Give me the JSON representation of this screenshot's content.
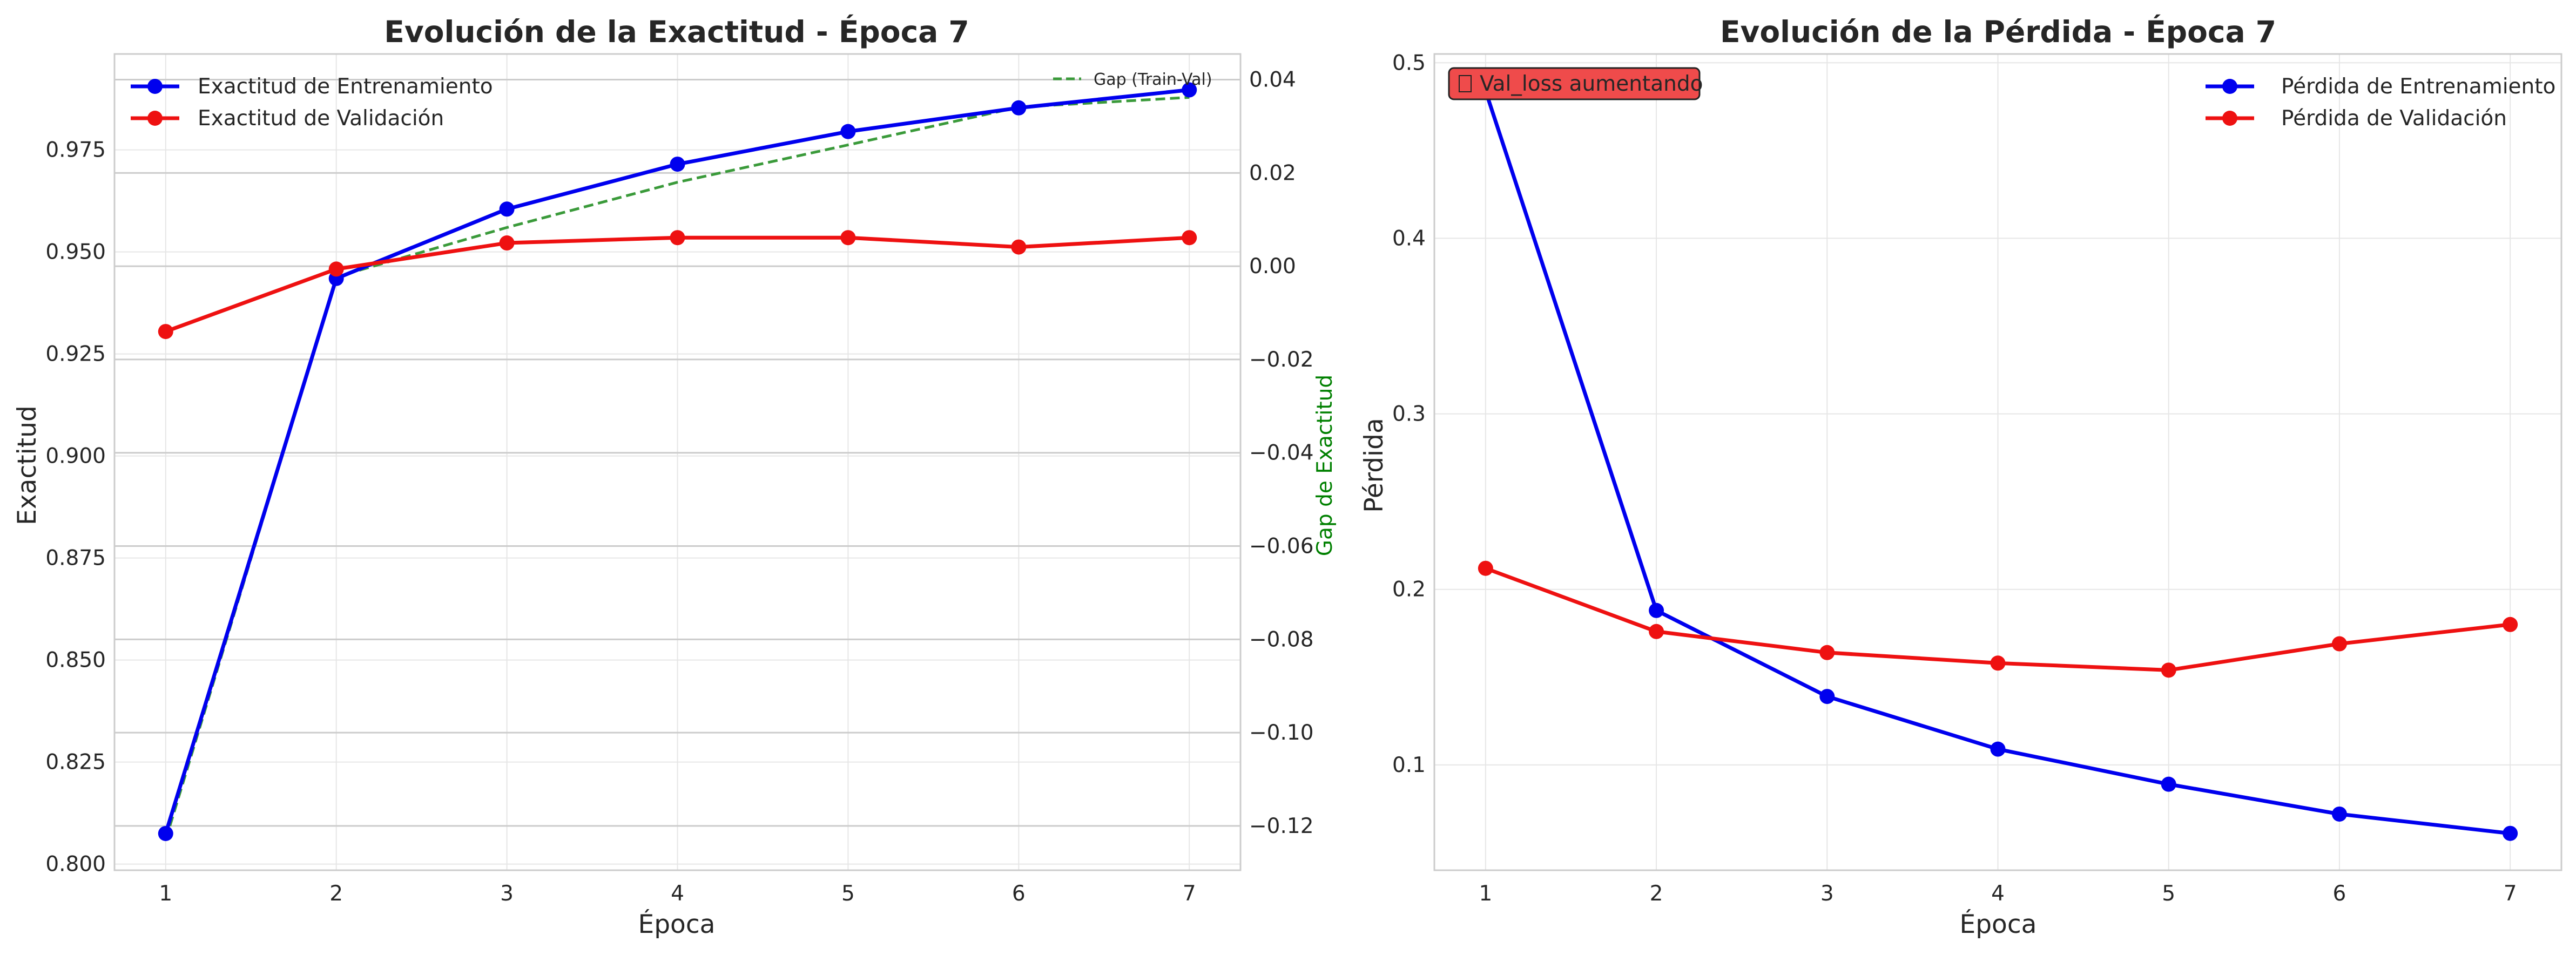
{
  "colors": {
    "train": "#0000ee",
    "val": "#ee1111",
    "gap": "#3a9a3a",
    "annotation_bg": "#ef4b4b",
    "grid": "#e6e6e6",
    "twin_grid": "#cccccc",
    "frame": "#cccccc"
  },
  "chart_data": [
    {
      "type": "line",
      "title": "Evolución de la Exactitud - Época 7",
      "xlabel": "Época",
      "ylabel": "Exactitud",
      "x": [
        1,
        2,
        3,
        4,
        5,
        6,
        7
      ],
      "xlim": [
        0.7,
        7.3
      ],
      "ylim": [
        0.7985,
        0.9985
      ],
      "yticks": [
        0.8,
        0.825,
        0.85,
        0.875,
        0.9,
        0.925,
        0.95,
        0.975
      ],
      "ytick_labels": [
        "0.800",
        "0.825",
        "0.850",
        "0.875",
        "0.900",
        "0.925",
        "0.950",
        "0.975"
      ],
      "grid": true,
      "legend_position": "upper-left",
      "series": [
        {
          "name": "Exactitud de Entrenamiento",
          "values": [
            0.8075,
            0.9435,
            0.9605,
            0.9715,
            0.9795,
            0.9853,
            0.9897
          ],
          "color_key": "train",
          "marker": "circle"
        },
        {
          "name": "Exactitud de Validación",
          "values": [
            0.9305,
            0.9458,
            0.9522,
            0.9535,
            0.9535,
            0.9512,
            0.9535
          ],
          "color_key": "val",
          "marker": "circle"
        }
      ],
      "secondary_axis": {
        "ylabel": "Gap de Exactitud",
        "ylim": [
          -0.1295,
          0.0455
        ],
        "yticks": [
          -0.12,
          -0.1,
          -0.08,
          -0.06,
          -0.04,
          -0.02,
          0.0,
          0.02,
          0.04
        ],
        "ytick_labels": [
          "−0.12",
          "−0.10",
          "−0.08",
          "−0.06",
          "−0.04",
          "−0.02",
          "0.00",
          "0.02",
          "0.04"
        ],
        "legend_position": "upper-right",
        "series": [
          {
            "name": "Gap (Train-Val)",
            "values": [
              -0.123,
              -0.0023,
              0.0083,
              0.018,
              0.026,
              0.0341,
              0.0362
            ],
            "color_key": "gap",
            "style": "dashed"
          }
        ]
      }
    },
    {
      "type": "line",
      "title": "Evolución de la Pérdida - Época 7",
      "xlabel": "Época",
      "ylabel": "Pérdida",
      "x": [
        1,
        2,
        3,
        4,
        5,
        6,
        7
      ],
      "xlim": [
        0.7,
        7.3
      ],
      "ylim": [
        0.04,
        0.505
      ],
      "yticks": [
        0.1,
        0.2,
        0.3,
        0.4,
        0.5
      ],
      "ytick_labels": [
        "0.1",
        "0.2",
        "0.3",
        "0.4",
        "0.5"
      ],
      "grid": true,
      "legend_position": "upper-right",
      "annotation": {
        "text": "Val_loss aumentando",
        "icon": "warning-sign-glyph-icon",
        "position": "upper-left"
      },
      "series": [
        {
          "name": "Pérdida de Entrenamiento",
          "values": [
            0.484,
            0.188,
            0.139,
            0.109,
            0.089,
            0.072,
            0.061
          ],
          "color_key": "train",
          "marker": "circle"
        },
        {
          "name": "Pérdida de Validación",
          "values": [
            0.212,
            0.176,
            0.164,
            0.158,
            0.154,
            0.169,
            0.18
          ],
          "color_key": "val",
          "marker": "circle"
        }
      ]
    }
  ]
}
